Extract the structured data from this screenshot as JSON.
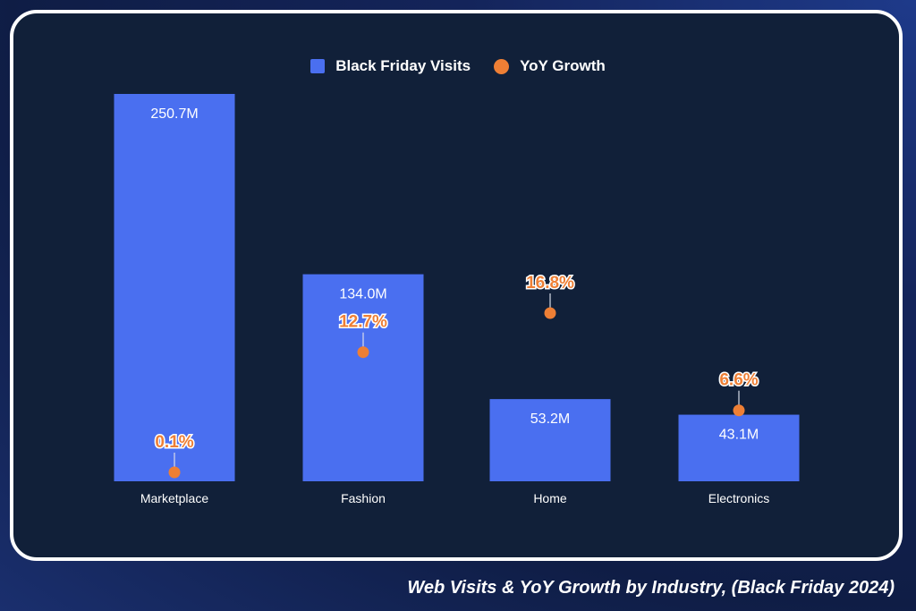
{
  "colors": {
    "bar": "#4a6ff0",
    "growth": "#ee7f35",
    "card_bg": "#112039",
    "text": "#ffffff"
  },
  "legend": {
    "visits_label": "Black Friday Visits",
    "growth_label": "YoY Growth"
  },
  "caption": "Web Visits & YoY Growth by Industry, (Black Friday 2024)",
  "chart_data": {
    "type": "bar",
    "title": "Web Visits & YoY Growth by Industry, (Black Friday 2024)",
    "categories": [
      "Marketplace",
      "Fashion",
      "Home",
      "Electronics"
    ],
    "series": [
      {
        "name": "Black Friday Visits",
        "kind": "bar",
        "values": [
          250.7,
          134.0,
          53.2,
          43.1
        ],
        "labels": [
          "250.7M",
          "134.0M",
          "53.2M",
          "43.1M"
        ]
      },
      {
        "name": "YoY Growth",
        "kind": "point",
        "values": [
          0.1,
          12.7,
          16.8,
          6.6
        ],
        "labels": [
          "0.1%",
          "12.7%",
          "16.8%",
          "6.6%"
        ]
      }
    ],
    "bar_axis_range": [
      0,
      250.7
    ],
    "growth_axis_range": [
      0,
      23
    ],
    "legend_position": "top-center",
    "grid": false
  }
}
